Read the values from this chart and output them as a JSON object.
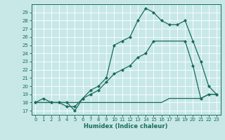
{
  "xlabel": "Humidex (Indice chaleur)",
  "ylabel": "",
  "bg_color": "#c8e8e8",
  "grid_color": "#b0d0d0",
  "line_color": "#1a6b5a",
  "xlim": [
    -0.5,
    23.5
  ],
  "ylim": [
    16.5,
    30.0
  ],
  "yticks": [
    17,
    18,
    19,
    20,
    21,
    22,
    23,
    24,
    25,
    26,
    27,
    28,
    29
  ],
  "xticks": [
    0,
    1,
    2,
    3,
    4,
    5,
    6,
    7,
    8,
    9,
    10,
    11,
    12,
    13,
    14,
    15,
    16,
    17,
    18,
    19,
    20,
    21,
    22,
    23
  ],
  "line1_x": [
    0,
    1,
    2,
    3,
    4,
    5,
    6,
    7,
    8,
    9,
    10,
    11,
    12,
    13,
    14,
    15,
    16,
    17,
    18,
    19,
    20,
    21,
    22,
    23
  ],
  "line1_y": [
    18.0,
    18.5,
    18.0,
    18.0,
    18.0,
    17.0,
    18.5,
    19.5,
    20.0,
    21.0,
    25.0,
    25.5,
    26.0,
    28.0,
    29.5,
    29.0,
    28.0,
    27.5,
    27.5,
    28.0,
    25.5,
    23.0,
    20.0,
    19.0
  ],
  "line2_x": [
    0,
    2,
    3,
    4,
    5,
    6,
    7,
    8,
    9,
    10,
    11,
    12,
    13,
    14,
    15,
    19,
    20,
    21,
    22,
    23
  ],
  "line2_y": [
    18.0,
    18.0,
    18.0,
    17.5,
    17.5,
    18.5,
    19.0,
    19.5,
    20.5,
    21.5,
    22.0,
    22.5,
    23.5,
    24.0,
    25.5,
    25.5,
    22.5,
    18.5,
    19.0,
    19.0
  ],
  "line3_x": [
    0,
    1,
    2,
    3,
    4,
    5,
    6,
    7,
    8,
    9,
    10,
    11,
    12,
    13,
    14,
    15,
    16,
    17,
    18,
    19,
    20,
    21,
    22,
    23
  ],
  "line3_y": [
    18.0,
    18.0,
    18.0,
    18.0,
    18.0,
    18.0,
    18.0,
    18.0,
    18.0,
    18.0,
    18.0,
    18.0,
    18.0,
    18.0,
    18.0,
    18.0,
    18.0,
    18.5,
    18.5,
    18.5,
    18.5,
    18.5,
    19.0,
    19.0
  ]
}
